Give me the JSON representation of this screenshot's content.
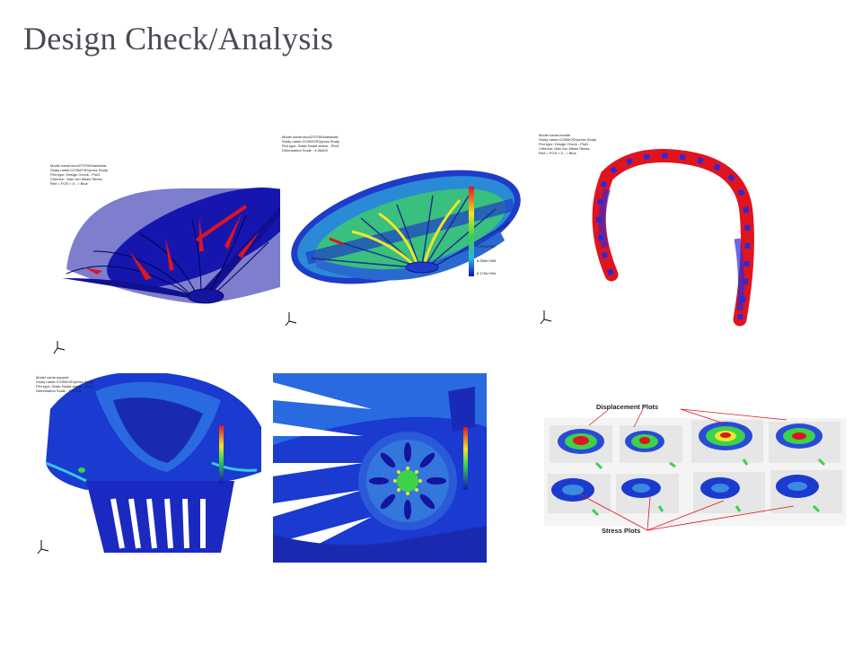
{
  "slide": {
    "title": "Design Check/Analysis"
  },
  "panels": [
    {
      "name": "basket-design-check",
      "caption": [
        "Model name:stool2T0T604talnotals",
        "Study name:COSMOSXpress Study",
        "Plot type: Design Check - Plot1",
        "Criterion : Max von Mises Stress",
        "Red = FOS < 5 ; = Blue"
      ]
    },
    {
      "name": "basket-static-stress",
      "caption": [
        "Model name:stool2T0T604talnotals",
        "Study name:COSMOSXpress Study",
        "Plot type: Static Nodal stress - Plot1",
        "Deformation Scale : 4.06403"
      ],
      "legend_values": [
        "1.271e+007",
        "6.395e+006",
        "8.170e+004"
      ]
    },
    {
      "name": "handle-design-check",
      "caption": [
        "Model name:handle",
        "Study name:COSMOSXpress Study",
        "Plot type: Design Check - Plot1",
        "Criterion: Max von Mises Stress",
        "Red = FOS < 5 ; = Blue"
      ]
    },
    {
      "name": "basket-closeup-stress",
      "caption": [
        "Model name:support",
        "Study name:COSMOSXpress Study",
        "Plot type: Static Nodal stress - Plot1",
        "Deformation Scale : 179.834"
      ]
    },
    {
      "name": "basket-bottom-stress",
      "caption": []
    },
    {
      "name": "platform-plots",
      "displacement_label": "Displacement Plots",
      "stress_label": "Stress Plots"
    }
  ],
  "colors": {
    "title": "#4a4a55",
    "mesh_blue": "#1414b4",
    "high_red": "#e0141e",
    "mid_green": "#3cd24a",
    "mid_yellow": "#f0e628"
  }
}
